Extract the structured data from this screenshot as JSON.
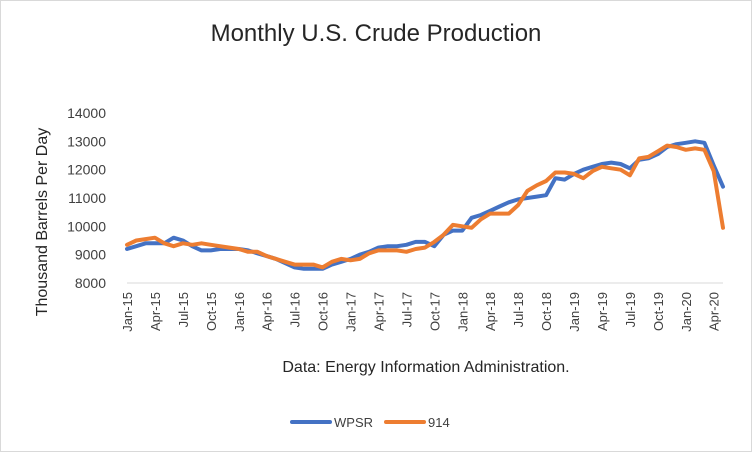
{
  "chart_data": {
    "type": "line",
    "title": "Monthly U.S. Crude Production",
    "ylabel": "Thousand Barrels Per Day",
    "xlabel": "Data: Energy Information Administration.",
    "ylim": [
      8000,
      14000
    ],
    "yticks": [
      8000,
      9000,
      10000,
      11000,
      12000,
      13000,
      14000
    ],
    "grid": false,
    "legend": "bottom",
    "x": [
      "Jan-15",
      "Feb-15",
      "Mar-15",
      "Apr-15",
      "May-15",
      "Jun-15",
      "Jul-15",
      "Aug-15",
      "Sep-15",
      "Oct-15",
      "Nov-15",
      "Dec-15",
      "Jan-16",
      "Feb-16",
      "Mar-16",
      "Apr-16",
      "May-16",
      "Jun-16",
      "Jul-16",
      "Aug-16",
      "Sep-16",
      "Oct-16",
      "Nov-16",
      "Dec-16",
      "Jan-17",
      "Feb-17",
      "Mar-17",
      "Apr-17",
      "May-17",
      "Jun-17",
      "Jul-17",
      "Aug-17",
      "Sep-17",
      "Oct-17",
      "Nov-17",
      "Dec-17",
      "Jan-18",
      "Feb-18",
      "Mar-18",
      "Apr-18",
      "May-18",
      "Jun-18",
      "Jul-18",
      "Aug-18",
      "Sep-18",
      "Oct-18",
      "Nov-18",
      "Dec-18",
      "Jan-19",
      "Feb-19",
      "Mar-19",
      "Apr-19",
      "May-19",
      "Jun-19",
      "Jul-19",
      "Aug-19",
      "Sep-19",
      "Oct-19",
      "Nov-19",
      "Dec-19",
      "Jan-20",
      "Feb-20",
      "Mar-20",
      "Apr-20",
      "May-20"
    ],
    "xtick_labels": [
      "Jan-15",
      "Apr-15",
      "Jul-15",
      "Oct-15",
      "Jan-16",
      "Apr-16",
      "Jul-16",
      "Oct-16",
      "Jan-17",
      "Apr-17",
      "Jul-17",
      "Oct-17",
      "Jan-18",
      "Apr-18",
      "Jul-18",
      "Oct-18",
      "Jan-19",
      "Apr-19",
      "Jul-19",
      "Oct-19",
      "Jan-20",
      "Apr-20"
    ],
    "series": [
      {
        "name": "WPSR",
        "color": "#4472c4",
        "values": [
          9200,
          9300,
          9400,
          9400,
          9400,
          9600,
          9500,
          9300,
          9150,
          9150,
          9200,
          9200,
          9200,
          9150,
          9050,
          8950,
          8850,
          8700,
          8550,
          8500,
          8500,
          8500,
          8650,
          8750,
          8850,
          9000,
          9100,
          9250,
          9300,
          9300,
          9350,
          9450,
          9450,
          9300,
          9700,
          9850,
          9850,
          10300,
          10400,
          10550,
          10700,
          10850,
          10950,
          11000,
          11050,
          11100,
          11700,
          11650,
          11850,
          12000,
          12100,
          12200,
          12250,
          12200,
          12050,
          12350,
          12400,
          12550,
          12800,
          12900,
          12950,
          13000,
          12950,
          12150,
          11400
        ]
      },
      {
        "name": "914",
        "color": "#ed7d31",
        "values": [
          9350,
          9500,
          9550,
          9600,
          9400,
          9300,
          9400,
          9350,
          9400,
          9350,
          9300,
          9250,
          9200,
          9100,
          9100,
          8950,
          8850,
          8750,
          8650,
          8650,
          8650,
          8550,
          8750,
          8850,
          8800,
          8850,
          9050,
          9150,
          9150,
          9150,
          9100,
          9200,
          9250,
          9450,
          9700,
          10050,
          10000,
          9950,
          10250,
          10450,
          10450,
          10450,
          10750,
          11250,
          11450,
          11600,
          11900,
          11900,
          11850,
          11700,
          11950,
          12100,
          12050,
          12000,
          11800,
          12400,
          12450,
          12650,
          12850,
          12800,
          12700,
          12750,
          12700,
          11950,
          9950
        ]
      }
    ]
  }
}
